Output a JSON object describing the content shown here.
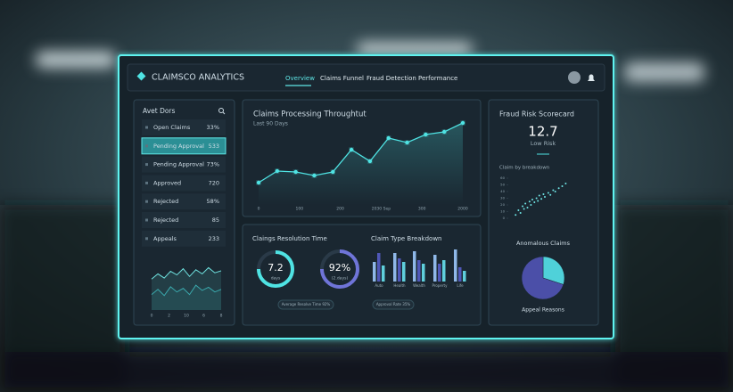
{
  "header": {
    "brand": "CLAIMSCO ANALYTICS",
    "nav": [
      "Overview",
      "Claims Funnel",
      "Fraud Detection",
      "Performance"
    ],
    "active_nav": 0
  },
  "sidebar": {
    "title": "Avet Dors",
    "selected_item": 1,
    "items": [
      {
        "label": "Open Claims",
        "value": "33%"
      },
      {
        "label": "Pending Approval",
        "value": "533"
      },
      {
        "label": "Pending Approval",
        "value": "73%"
      },
      {
        "label": "Approved",
        "value": "720"
      },
      {
        "label": "Rejected",
        "value": "58%"
      },
      {
        "label": "Rejected",
        "value": "85"
      },
      {
        "label": "Appeals",
        "value": "233"
      }
    ],
    "mini_chart": {
      "x_labels": [
        "0",
        "2",
        "10",
        "6",
        "8"
      ],
      "ylim": [
        0,
        100
      ],
      "series": [
        {
          "color": "#6fe3e0",
          "values": [
            60,
            70,
            62,
            75,
            68,
            80,
            65,
            78,
            70,
            82,
            72,
            76
          ]
        },
        {
          "color": "#3aa9ad",
          "values": [
            30,
            40,
            28,
            45,
            35,
            42,
            30,
            48,
            38,
            44,
            35,
            40
          ]
        }
      ]
    }
  },
  "throughput": {
    "type": "line",
    "title": "Claims Processing Throughtut",
    "subtitle": "Last 90 Days",
    "x_labels": [
      "0",
      "100",
      "200",
      "2030 Sep",
      "300",
      "2000"
    ],
    "values": [
      25,
      38,
      37,
      33,
      37,
      62,
      49,
      75,
      70,
      79,
      82,
      92
    ],
    "ylim": [
      0,
      100
    ],
    "color": "#4fe3e3"
  },
  "resolution": {
    "title": "Claings Resolution Time",
    "gauges": [
      {
        "value": "7.2",
        "unit": "days"
      },
      {
        "value": "92%",
        "unit": "(2.days)"
      }
    ],
    "pills": [
      "Average Resolve Time 92%",
      "Approval Rate 35%"
    ]
  },
  "claim_types": {
    "type": "bar",
    "title": "Claim Type Breakdown",
    "categories": [
      "Auto",
      "Health",
      "Wealth",
      "Property",
      "Life"
    ],
    "ylim": [
      0,
      100
    ],
    "series": [
      {
        "color": "#8fb8e8",
        "values": [
          55,
          80,
          85,
          75,
          90
        ]
      },
      {
        "color": "#5058b8",
        "values": [
          80,
          65,
          60,
          50,
          40
        ]
      },
      {
        "color": "#5fcfdc",
        "values": [
          45,
          55,
          50,
          60,
          30
        ]
      }
    ]
  },
  "fraud": {
    "title": "Fraud Risk Scorecard",
    "score": 12.7,
    "risk_label": "Low Risk",
    "scatter": {
      "title": "Claim by breakdown",
      "xlim": [
        0,
        100
      ],
      "ylim": [
        0,
        60
      ],
      "yticks": [
        0,
        10,
        20,
        30,
        40,
        50,
        60
      ],
      "x": [
        8,
        12,
        15,
        18,
        20,
        22,
        25,
        28,
        30,
        32,
        35,
        38,
        40,
        42,
        45,
        48,
        50,
        55,
        58,
        62,
        65,
        70,
        75,
        80
      ],
      "y": [
        5,
        12,
        8,
        18,
        14,
        22,
        16,
        25,
        20,
        28,
        24,
        30,
        26,
        34,
        29,
        36,
        32,
        38,
        35,
        42,
        40,
        45,
        48,
        52
      ]
    },
    "pie_title": "Anomalous Claims",
    "pie": {
      "values": [
        30,
        70
      ],
      "colors": [
        "#4fd1d9",
        "#4b4fa8"
      ]
    },
    "pie_caption": "Appeal Reasons"
  }
}
